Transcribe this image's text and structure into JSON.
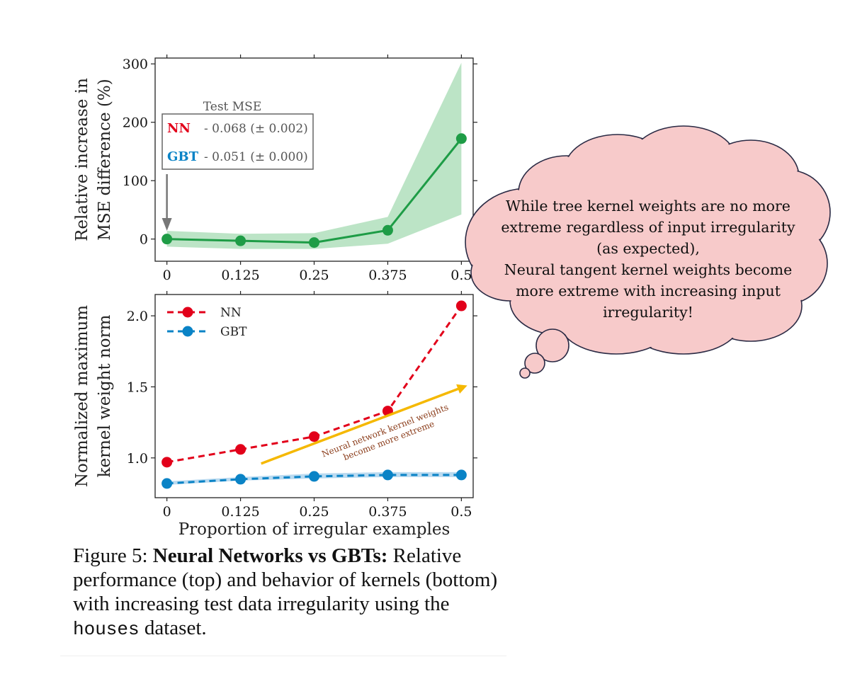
{
  "caption": {
    "figure_label": "Figure 5:",
    "bold_title": "Neural Networks vs GBTs:",
    "text_before_code": " Relative performance (top) and behavior of kernels (bottom) with increasing test data irregularity using the ",
    "code": "houses",
    "text_after_code": " dataset."
  },
  "chart_data": [
    {
      "type": "line",
      "xlabel": "",
      "ylabel": "Relative increase in MSE difference (%)",
      "ylabel_lines": [
        "Relative increase in",
        "MSE difference (%)"
      ],
      "x": [
        0,
        0.125,
        0.25,
        0.375,
        0.5
      ],
      "x_tick_labels": [
        "0",
        "0.125",
        "0.25",
        "0.375",
        "0.5"
      ],
      "xlim": [
        -0.02,
        0.52
      ],
      "ylim": [
        -38,
        310
      ],
      "y_ticks": [
        0,
        100,
        200,
        300
      ],
      "series": [
        {
          "values": [
            0,
            -3,
            -6,
            15,
            172
          ],
          "band_lower": [
            -13,
            -17,
            -17,
            -8,
            42
          ],
          "band_upper": [
            14,
            9,
            10,
            38,
            302
          ],
          "color": "#1e9c46",
          "band_color": "#9fd8ae"
        }
      ],
      "legend_box": {
        "title": "Test MSE",
        "rows": [
          {
            "label": "NN",
            "text": "- 0.068 (± 0.002)",
            "color": "#e2001a"
          },
          {
            "label": "GBT",
            "text": "- 0.051 (± 0.000)",
            "color": "#0a83c6"
          }
        ],
        "arrow_color": "#777777"
      }
    },
    {
      "type": "line",
      "xlabel": "Proportion of irregular examples",
      "ylabel": "Normalized maximum kernel weight norm",
      "ylabel_lines": [
        "Normalized maximum",
        "kernel weight norm"
      ],
      "x": [
        0,
        0.125,
        0.25,
        0.375,
        0.5
      ],
      "x_tick_labels": [
        "0",
        "0.125",
        "0.25",
        "0.375",
        "0.5"
      ],
      "xlim": [
        -0.02,
        0.52
      ],
      "ylim": [
        0.72,
        2.15
      ],
      "y_ticks": [
        1.0,
        1.5,
        2.0
      ],
      "y_tick_labels": [
        "1.0",
        "1.5",
        "2.0"
      ],
      "legend": "top-left",
      "series": [
        {
          "name": "NN",
          "values": [
            0.97,
            1.06,
            1.15,
            1.33,
            2.07
          ],
          "color": "#e2001a"
        },
        {
          "name": "GBT",
          "values": [
            0.82,
            0.85,
            0.87,
            0.88,
            0.88
          ],
          "band_lower": [
            0.81,
            0.84,
            0.855,
            0.865,
            0.865
          ],
          "band_upper": [
            0.835,
            0.865,
            0.89,
            0.9,
            0.9
          ],
          "color": "#0a83c6",
          "band_color": "#9ccbea"
        }
      ],
      "annotation": {
        "lines": [
          "Neural network kernel weights",
          "become more extreme"
        ],
        "text_color": "#8b3d1b",
        "arrow_color": "#f5b800",
        "arrow_from": [
          0.16,
          0.96
        ],
        "arrow_to": [
          0.51,
          1.51
        ]
      }
    }
  ],
  "thought_bubble": {
    "lines": [
      "While tree kernel weights are no more",
      "extreme regardless of input irregularity",
      "(as expected),",
      "Neural tangent kernel weights become",
      "more extreme with increasing input",
      "irregularity!"
    ],
    "fill": "#f7caca",
    "stroke": "#2a2a44"
  }
}
